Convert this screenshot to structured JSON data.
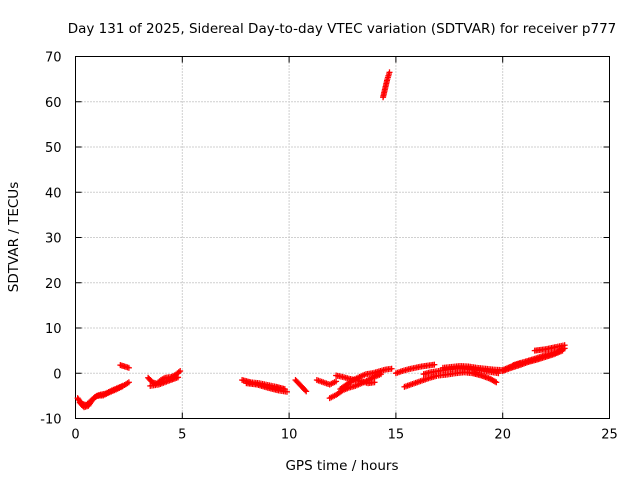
{
  "chart_data": {
    "type": "scatter",
    "title": "Day 131 of 2025, Sidereal Day-to-day VTEC variation (SDTVAR) for receiver p777",
    "xlabel": "GPS time / hours",
    "ylabel": "SDTVAR / TECUs",
    "xlim": [
      0,
      25
    ],
    "ylim": [
      -10,
      70
    ],
    "x_ticks": [
      0,
      5,
      10,
      15,
      20,
      25
    ],
    "y_ticks": [
      -10,
      0,
      10,
      20,
      30,
      40,
      50,
      60,
      70
    ],
    "grid": true,
    "marker": "+",
    "color": "#ff0000",
    "series": [
      {
        "name": "SDTVAR",
        "segments": [
          {
            "x": [
              0.1,
              0.3,
              0.5,
              0.7,
              0.9,
              1.1,
              1.4,
              1.7,
              2.0,
              2.3,
              2.5
            ],
            "y": [
              -5.5,
              -6.8,
              -7.0,
              -6.2,
              -5.3,
              -4.8,
              -4.5,
              -3.8,
              -3.2,
              -2.6,
              -2.0
            ]
          },
          {
            "x": [
              0.2,
              0.4,
              0.6,
              0.8,
              1.0,
              1.3,
              1.6,
              1.9,
              2.2
            ],
            "y": [
              -6.5,
              -7.5,
              -7.2,
              -5.8,
              -5.0,
              -4.9,
              -4.2,
              -3.6,
              -2.9
            ]
          },
          {
            "x": [
              2.1,
              2.3,
              2.5
            ],
            "y": [
              1.8,
              1.5,
              1.2
            ]
          },
          {
            "x": [
              3.4,
              3.6,
              3.8,
              4.0,
              4.2,
              4.5,
              4.7,
              4.9
            ],
            "y": [
              -1.0,
              -2.0,
              -2.3,
              -1.5,
              -1.0,
              -0.8,
              -0.3,
              0.5
            ]
          },
          {
            "x": [
              3.5,
              3.9,
              4.4,
              4.8
            ],
            "y": [
              -2.8,
              -2.5,
              -1.6,
              -0.9
            ]
          },
          {
            "x": [
              7.8,
              8.2,
              8.6,
              9.0,
              9.4,
              9.8
            ],
            "y": [
              -1.5,
              -2.0,
              -2.2,
              -2.6,
              -3.0,
              -3.5
            ]
          },
          {
            "x": [
              8.0,
              8.5,
              9.0,
              9.5,
              9.9
            ],
            "y": [
              -2.2,
              -2.5,
              -3.2,
              -3.8,
              -4.1
            ]
          },
          {
            "x": [
              10.3,
              10.6,
              10.8
            ],
            "y": [
              -1.5,
              -3.0,
              -4.0
            ]
          },
          {
            "x": [
              11.3,
              11.6,
              11.9,
              12.2
            ],
            "y": [
              -1.5,
              -2.0,
              -2.5,
              -1.8
            ]
          },
          {
            "x": [
              11.9,
              12.2,
              12.5,
              12.8,
              13.1,
              13.4,
              13.7,
              14.0,
              14.3
            ],
            "y": [
              -5.5,
              -4.8,
              -3.8,
              -3.2,
              -2.8,
              -2.2,
              -1.5,
              -0.8,
              -0.2
            ]
          },
          {
            "x": [
              12.4,
              12.7,
              13.0,
              13.3,
              13.6,
              13.9,
              14.2,
              14.5,
              14.8
            ],
            "y": [
              -3.5,
              -2.5,
              -1.5,
              -0.8,
              -0.2,
              0.0,
              0.4,
              0.8,
              1.0
            ]
          },
          {
            "x": [
              12.2,
              12.5,
              12.8,
              13.1,
              13.4,
              13.7,
              14.0
            ],
            "y": [
              -0.5,
              -0.8,
              -1.2,
              -1.5,
              -1.8,
              -2.2,
              -2.0
            ]
          },
          {
            "x": [
              14.4,
              14.5,
              14.6,
              14.7
            ],
            "y": [
              61.0,
              63.0,
              65.0,
              66.5
            ]
          },
          {
            "x": [
              15.0,
              15.3,
              15.6,
              15.9,
              16.2,
              16.5,
              16.8
            ],
            "y": [
              0.0,
              0.5,
              0.9,
              1.2,
              1.5,
              1.7,
              1.9
            ]
          },
          {
            "x": [
              15.4,
              15.7,
              16.0,
              16.3,
              16.6,
              16.9
            ],
            "y": [
              -3.0,
              -2.5,
              -2.0,
              -1.5,
              -1.0,
              -0.6
            ]
          },
          {
            "x": [
              16.3,
              16.6,
              17.0,
              17.4,
              17.8,
              18.2,
              18.6,
              19.0,
              19.4,
              19.8
            ],
            "y": [
              -0.2,
              0.2,
              0.5,
              0.8,
              1.0,
              1.0,
              0.8,
              0.6,
              0.3,
              0.0
            ]
          },
          {
            "x": [
              17.0,
              17.4,
              17.8,
              18.2,
              18.6,
              19.0,
              19.4,
              19.7
            ],
            "y": [
              -0.5,
              -0.3,
              0.0,
              0.2,
              0.0,
              -0.5,
              -1.2,
              -2.0
            ]
          },
          {
            "x": [
              17.2,
              17.6,
              18.0,
              18.4,
              18.8,
              19.2,
              19.6,
              20.0,
              20.4,
              20.8
            ],
            "y": [
              1.2,
              1.4,
              1.6,
              1.5,
              1.2,
              1.0,
              0.8,
              0.7,
              1.5,
              2.2
            ]
          },
          {
            "x": [
              20.0,
              20.4,
              20.8,
              21.2,
              21.6,
              22.0,
              22.4,
              22.8
            ],
            "y": [
              0.5,
              1.2,
              1.8,
              2.5,
              3.0,
              3.6,
              4.2,
              5.0
            ]
          },
          {
            "x": [
              20.5,
              21.0,
              21.5,
              22.0,
              22.5,
              22.9
            ],
            "y": [
              1.8,
              2.5,
              3.2,
              4.0,
              4.6,
              5.5
            ]
          },
          {
            "x": [
              21.5,
              22.0,
              22.5,
              22.9
            ],
            "y": [
              5.0,
              5.3,
              5.8,
              6.2
            ]
          }
        ]
      }
    ]
  }
}
